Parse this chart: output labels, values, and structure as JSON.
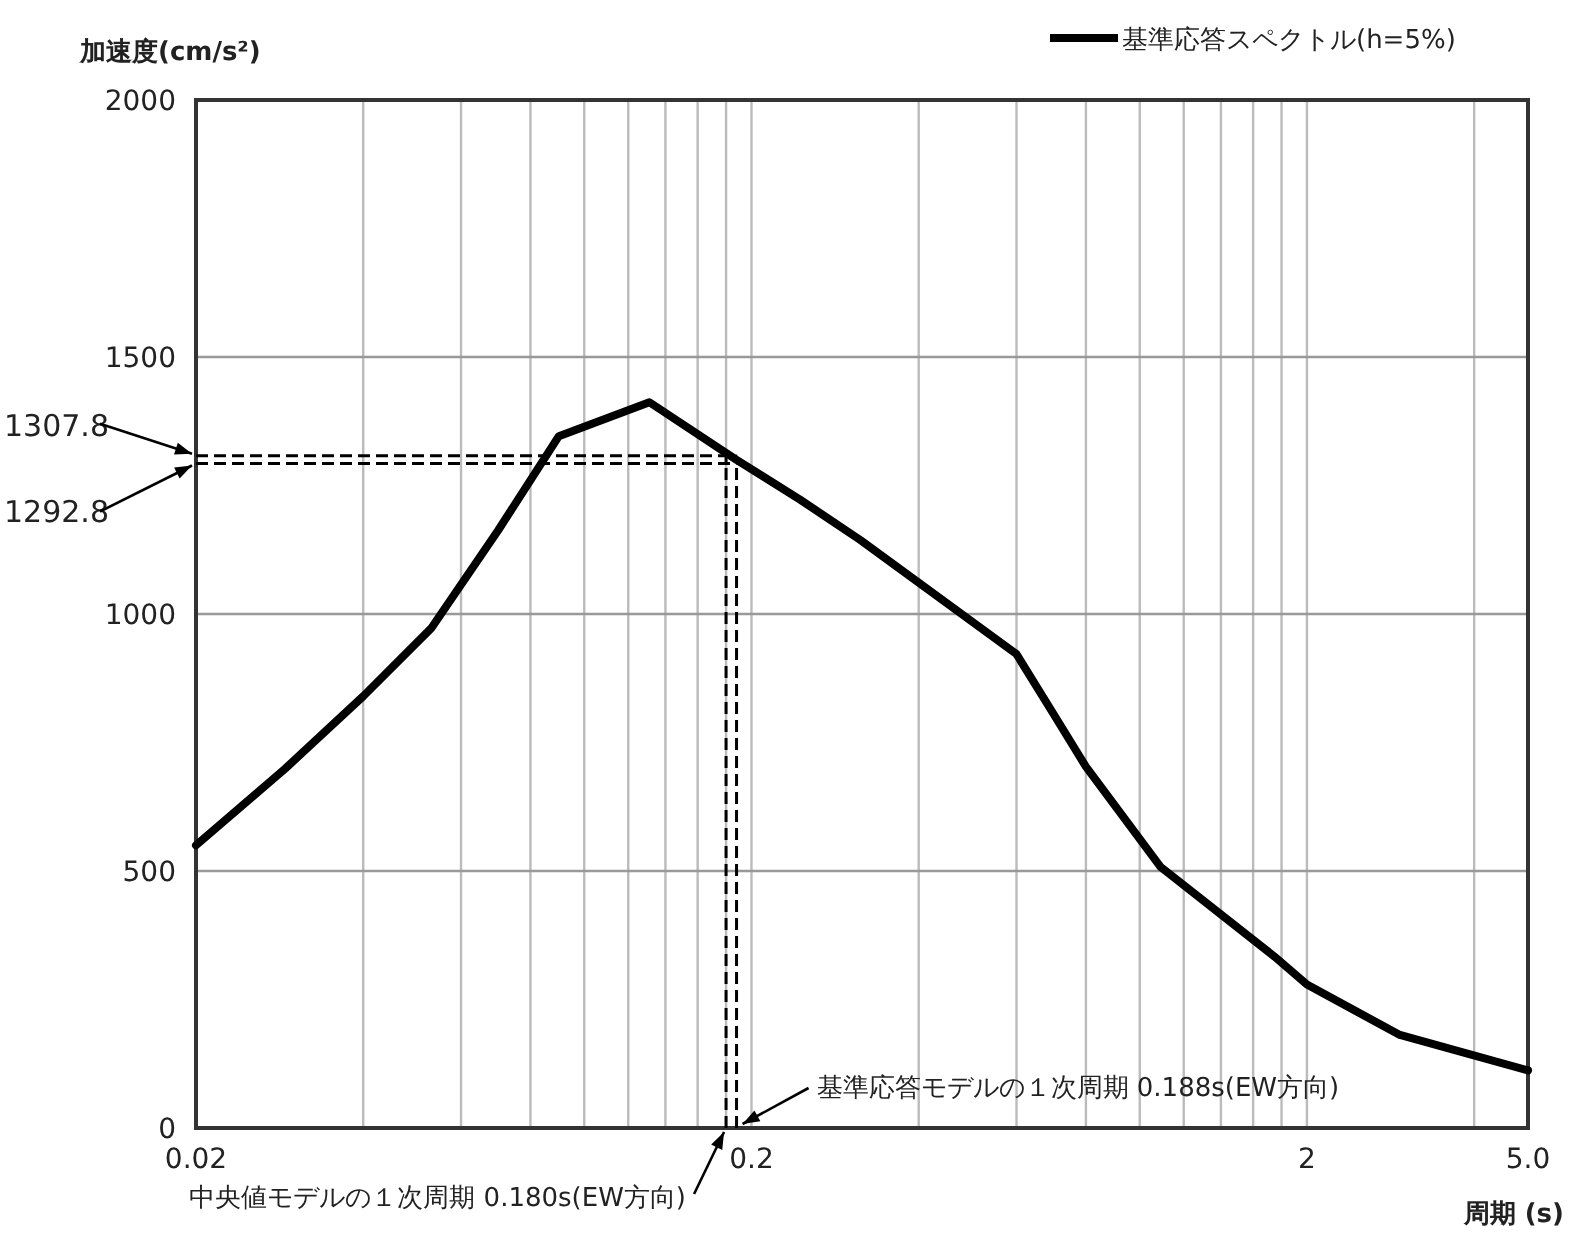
{
  "chart_data": {
    "type": "line",
    "ylabel": "加速度(cm/s²)",
    "xlabel": "周期 (s)",
    "series": [
      {
        "name": "基準応答スペクトル(h=5%)",
        "color": "#000000",
        "x": [
          0.02,
          0.029,
          0.04,
          0.053,
          0.07,
          0.09,
          0.131,
          0.188,
          0.245,
          0.314,
          0.6,
          0.7,
          0.8,
          1.09,
          1.75,
          2.0,
          2.94,
          5.0
        ],
        "values": [
          550,
          700,
          840,
          972,
          1163,
          1346,
          1412,
          1300,
          1222,
          1144,
          922,
          805,
          703,
          508,
          333,
          279,
          181,
          112
        ]
      }
    ],
    "log": "x",
    "xlim": [
      0.02,
      5.0
    ],
    "xticks": [
      {
        "value": 0.02,
        "label": "0.02"
      },
      {
        "value": 0.04,
        "label": null
      },
      {
        "value": 0.06,
        "label": null
      },
      {
        "value": 0.08,
        "label": null
      },
      {
        "value": 0.1,
        "label": null
      },
      {
        "value": 0.12,
        "label": null
      },
      {
        "value": 0.14,
        "label": null
      },
      {
        "value": 0.16,
        "label": null
      },
      {
        "value": 0.18,
        "label": null
      },
      {
        "value": 0.2,
        "label": "0.2"
      },
      {
        "value": 0.4,
        "label": null
      },
      {
        "value": 0.6,
        "label": null
      },
      {
        "value": 0.8,
        "label": null
      },
      {
        "value": 1.0,
        "label": null
      },
      {
        "value": 1.2,
        "label": null
      },
      {
        "value": 1.4,
        "label": null
      },
      {
        "value": 1.6,
        "label": null
      },
      {
        "value": 1.8,
        "label": null
      },
      {
        "value": 2,
        "label": "2"
      },
      {
        "value": 4,
        "label": null
      },
      {
        "value": 5,
        "label": "5.0"
      }
    ],
    "ylim": [
      0,
      2000
    ],
    "yticks": [
      0,
      500,
      1000,
      1500,
      2000
    ],
    "grid": true,
    "legend": "top right",
    "ref_lines": [
      {
        "axis": "y",
        "value": 1307.8,
        "label": "1307.8",
        "color": "#000000",
        "line_style": "dashed"
      },
      {
        "axis": "y",
        "value": 1292.8,
        "label": "1292.8",
        "color": "#000000",
        "line_style": "dashed"
      },
      {
        "axis": "x",
        "value": 0.188,
        "label": "基準応答モデルの１次周期 0.188s(EW方向)",
        "color": "#000000",
        "line_style": "dashed"
      },
      {
        "axis": "x",
        "value": 0.18,
        "label": "中央値モデルの１次周期 0.180s(EW方向)",
        "color": "#000000",
        "line_style": "dashed"
      }
    ]
  }
}
